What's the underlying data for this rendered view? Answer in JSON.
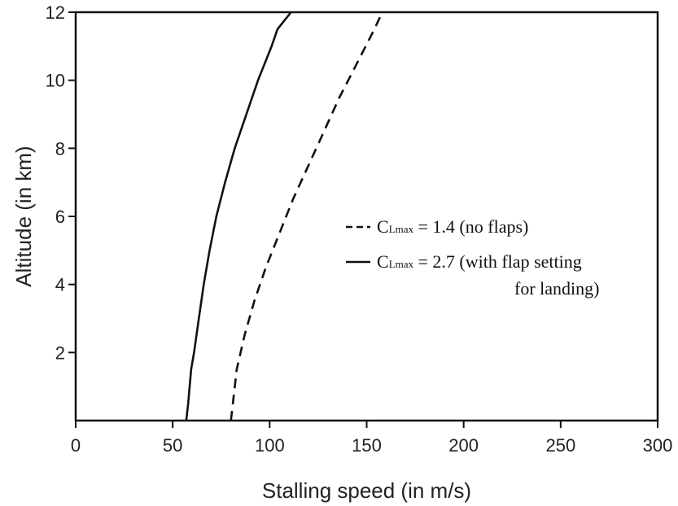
{
  "chart_data": {
    "type": "line",
    "xlabel": "Stalling speed (in m/s)",
    "ylabel": "Altitude (in km)",
    "xlim": [
      0,
      300
    ],
    "ylim": [
      0,
      12
    ],
    "xticks": [
      0,
      50,
      100,
      150,
      200,
      250,
      300
    ],
    "yticks": [
      2,
      4,
      6,
      8,
      10,
      12
    ],
    "grid": false,
    "legend_position": "center-right",
    "series": [
      {
        "legend_pre": "C",
        "legend_sub": "Lmax",
        "legend_post": " = 1.4 (no flaps)",
        "style": "dashed",
        "color": "#111111",
        "points": [
          [
            80,
            0
          ],
          [
            81,
            0.5
          ],
          [
            83,
            1.5
          ],
          [
            87,
            2.5
          ],
          [
            92,
            3.5
          ],
          [
            98,
            4.5
          ],
          [
            105,
            5.5
          ],
          [
            112,
            6.5
          ],
          [
            120,
            7.5
          ],
          [
            128,
            8.5
          ],
          [
            136,
            9.5
          ],
          [
            145,
            10.5
          ],
          [
            154,
            11.5
          ],
          [
            158,
            12
          ]
        ]
      },
      {
        "legend_pre": "C",
        "legend_sub": "Lmax",
        "legend_post": " = 2.7 (with flap setting",
        "legend_line2": "for landing)",
        "style": "solid",
        "color": "#111111",
        "points": [
          [
            57,
            0
          ],
          [
            58,
            0.5
          ],
          [
            59.5,
            1.5
          ],
          [
            61,
            2
          ],
          [
            63.5,
            3
          ],
          [
            66,
            4
          ],
          [
            69,
            5
          ],
          [
            72.5,
            6
          ],
          [
            77,
            7
          ],
          [
            82,
            8
          ],
          [
            88,
            9
          ],
          [
            94,
            10
          ],
          [
            101,
            11
          ],
          [
            104,
            11.5
          ],
          [
            111,
            12
          ]
        ]
      }
    ]
  }
}
